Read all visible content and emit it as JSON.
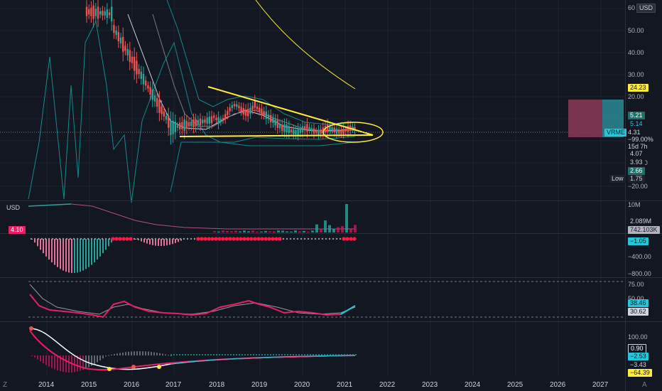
{
  "price_axis": {
    "currency": "USD",
    "ticks": [
      "60",
      "50.00",
      "40.00",
      "30.00",
      "20.00",
      "−10.00",
      "−20.00"
    ],
    "badges": [
      "24.23",
      "5.21",
      "5.14",
      "4.31",
      "−99.00%",
      "15d 7h",
      "4.07",
      "3.93",
      "2.66",
      "1.75"
    ],
    "low_label": "Low",
    "symbol_tag": "VRME"
  },
  "volume_pane": {
    "currency": "USD",
    "value_tag": "4.10",
    "axis_ticks": [
      "10M"
    ],
    "badges": [
      "2.089M",
      "742.103K"
    ]
  },
  "macd_pane": {
    "axis_ticks": [
      "−400.00",
      "−800.00"
    ],
    "badge": "−1.05"
  },
  "rsi_pane": {
    "axis_ticks": [
      "75.00",
      "50.00"
    ],
    "badges": [
      "38.46",
      "30.62"
    ]
  },
  "osc_pane": {
    "axis_ticks": [
      "100.00"
    ],
    "badges": [
      "0.90",
      "−2.53",
      "−3.43",
      "−64.39"
    ]
  },
  "time_axis": {
    "years": [
      "2014",
      "2015",
      "2016",
      "2017",
      "2018",
      "2019",
      "2020",
      "2021",
      "2022",
      "2023",
      "2024",
      "2025",
      "2026",
      "2027"
    ],
    "left_corner": "Z",
    "right_corner": "A"
  },
  "colors": {
    "up": "#26a69a",
    "down": "#ef5350",
    "trend_annotation": "#ffeb3b",
    "background": "#131722"
  }
}
